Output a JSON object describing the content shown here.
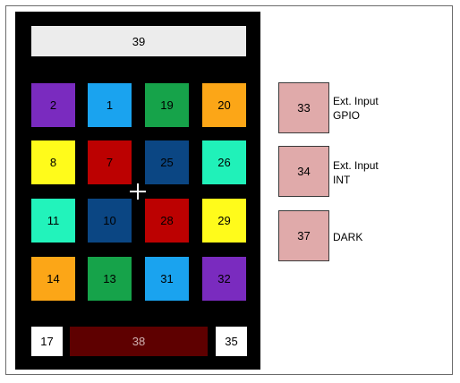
{
  "top_bar": {
    "label": "39"
  },
  "pads": [
    {
      "label": "2",
      "color": "#7a2bbf"
    },
    {
      "label": "1",
      "color": "#1aa3ef"
    },
    {
      "label": "19",
      "color": "#16a34a"
    },
    {
      "label": "20",
      "color": "#fca617"
    },
    {
      "label": "8",
      "color": "#fffb1b"
    },
    {
      "label": "7",
      "color": "#bc0101"
    },
    {
      "label": "25",
      "color": "#0b4683"
    },
    {
      "label": "26",
      "color": "#20f1b9"
    },
    {
      "label": "11",
      "color": "#22f3bb"
    },
    {
      "label": "10",
      "color": "#0b4683"
    },
    {
      "label": "28",
      "color": "#bc0101"
    },
    {
      "label": "29",
      "color": "#fffb1b"
    },
    {
      "label": "14",
      "color": "#fca617"
    },
    {
      "label": "13",
      "color": "#16a34a"
    },
    {
      "label": "31",
      "color": "#1aa3ef"
    },
    {
      "label": "32",
      "color": "#7a2bbf"
    }
  ],
  "bottom": {
    "left": "17",
    "bar": "38",
    "right": "35"
  },
  "side": [
    {
      "num": "33",
      "line1": "Ext. Input",
      "line2": "GPIO"
    },
    {
      "num": "34",
      "line1": "Ext. Input",
      "line2": "INT"
    },
    {
      "num": "37",
      "line1": "DARK",
      "line2": ""
    }
  ]
}
